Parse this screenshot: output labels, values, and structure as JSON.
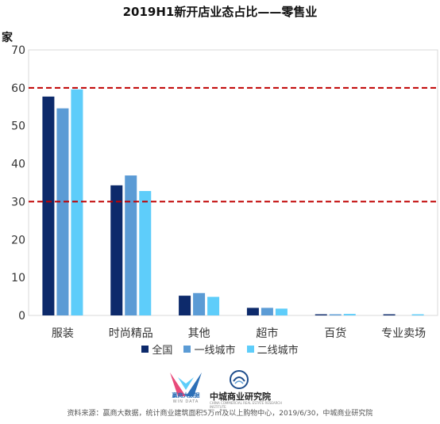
{
  "title": "2019H1新开店业态占比——零售业",
  "y_unit": "家",
  "legend": [
    {
      "label": "全国",
      "color": "#0d2a6b"
    },
    {
      "label": "一线城市",
      "color": "#5b9bd5"
    },
    {
      "label": "二线城市",
      "color": "#5ecdfa"
    }
  ],
  "chart_data": {
    "type": "bar",
    "categories": [
      "服装",
      "时尚精品",
      "其他",
      "超市",
      "百货",
      "专业卖场"
    ],
    "series": [
      {
        "name": "全国",
        "values": [
          57.7,
          34.3,
          5.2,
          2.0,
          0.3,
          0.3
        ]
      },
      {
        "name": "一线城市",
        "values": [
          54.6,
          36.9,
          5.9,
          2.0,
          0.3,
          0.0
        ]
      },
      {
        "name": "二线城市",
        "values": [
          59.6,
          32.8,
          4.9,
          1.8,
          0.4,
          0.3
        ]
      }
    ],
    "ylim": [
      0,
      70
    ],
    "yticks": [
      0,
      10,
      20,
      30,
      40,
      50,
      60,
      70
    ],
    "reference_lines": [
      30,
      60
    ],
    "reference_line_color": "#c00000",
    "grid": false,
    "legend_position": "bottom"
  },
  "logos": {
    "winshang_name": "赢商大数据",
    "winshang_sub": "WIN DATA",
    "zhongcheng_name": "中城商业研究院",
    "zhongcheng_sub": "CHINA COMMERCIAL REAL ESTATE RESEARCH INSTITUTE"
  },
  "source": "资料来源：赢商大数据，统计商业建筑面积5万㎡及以上购物中心，2019/6/30，中城商业研究院"
}
